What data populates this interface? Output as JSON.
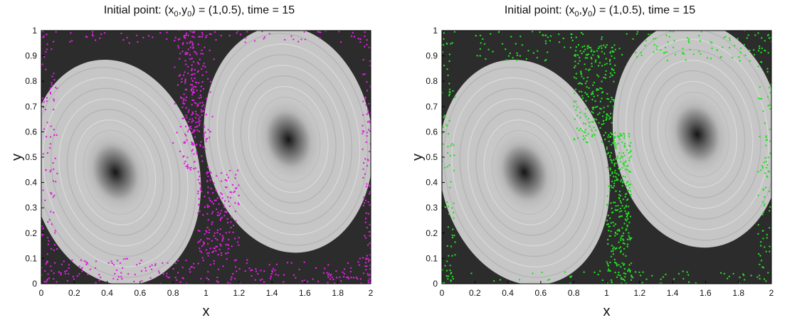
{
  "chart_data": [
    {
      "type": "scatter",
      "title_prefix": "Initial point: (x",
      "title_sub0": "0",
      "title_mid": ",y",
      "title_sub1": "0",
      "title_suffix": ") = (1,0.5),  time = 15",
      "xlabel": "x",
      "ylabel": "y",
      "xlim": [
        0,
        2
      ],
      "ylim": [
        0,
        1
      ],
      "xticks": [
        "0",
        "0.2",
        "0.4",
        "0.6",
        "0.8",
        "1",
        "1.2",
        "1.4",
        "1.6",
        "1.8",
        "2"
      ],
      "yticks": [
        "0",
        "0.1",
        "0.2",
        "0.3",
        "0.4",
        "0.5",
        "0.6",
        "0.7",
        "0.8",
        "0.9",
        "1"
      ],
      "background": "grayscale double-gyre flow field with two dark vortex cores",
      "vortex_centers": [
        [
          0.45,
          0.44
        ],
        [
          1.5,
          0.57
        ]
      ],
      "marker_color": "#e020e0",
      "particle_distribution": [
        {
          "region": "central separatrix band",
          "x_center": 0.92,
          "x_range": [
            0.85,
            1.0
          ],
          "y_range": [
            0.45,
            1.0
          ]
        },
        {
          "region": "lower separatrix band",
          "x_range": [
            0.95,
            1.2
          ],
          "y_range": [
            0.1,
            0.45
          ]
        },
        {
          "region": "bottom boundary",
          "x_range": [
            0.0,
            2.0
          ],
          "y_range": [
            0.0,
            0.1
          ]
        },
        {
          "region": "top boundary",
          "x_range": [
            0.0,
            2.0
          ],
          "y_range": [
            0.95,
            1.0
          ]
        },
        {
          "region": "left boundary",
          "x_range": [
            0.0,
            0.1
          ],
          "y_range": [
            0.0,
            1.0
          ]
        },
        {
          "region": "right boundary",
          "x_range": [
            1.95,
            2.0
          ],
          "y_range": [
            0.0,
            1.0
          ]
        }
      ]
    },
    {
      "type": "scatter",
      "title_prefix": "Initial point: (x",
      "title_sub0": "0",
      "title_mid": ",y",
      "title_sub1": "0",
      "title_suffix": ") = (1,0.5),  time = 15",
      "xlabel": "x",
      "ylabel": "y",
      "xlim": [
        0,
        2
      ],
      "ylim": [
        0,
        1
      ],
      "xticks": [
        "0",
        "0.2",
        "0.4",
        "0.6",
        "0.8",
        "1",
        "1.2",
        "1.4",
        "1.6",
        "1.8",
        "2"
      ],
      "yticks": [
        "0",
        "0.1",
        "0.2",
        "0.3",
        "0.4",
        "0.5",
        "0.6",
        "0.7",
        "0.8",
        "0.9",
        "1"
      ],
      "background": "grayscale double-gyre flow field with two dark vortex cores",
      "vortex_centers": [
        [
          0.5,
          0.44
        ],
        [
          1.55,
          0.59
        ]
      ],
      "marker_color": "#22e022",
      "particle_distribution": [
        {
          "region": "central separatrix band (lower)",
          "x_range": [
            1.0,
            1.15
          ],
          "y_range": [
            0.0,
            0.6
          ]
        },
        {
          "region": "central separatrix band (upper)",
          "x_range": [
            0.8,
            1.05
          ],
          "y_range": [
            0.55,
            0.95
          ]
        },
        {
          "region": "top boundary",
          "x_range": [
            0.2,
            2.0
          ],
          "y_range": [
            0.88,
            1.0
          ]
        },
        {
          "region": "left boundary",
          "x_range": [
            0.0,
            0.08
          ],
          "y_range": [
            0.0,
            1.0
          ]
        },
        {
          "region": "right boundary",
          "x_range": [
            1.92,
            2.0
          ],
          "y_range": [
            0.0,
            1.0
          ]
        },
        {
          "region": "bottom boundary",
          "x_range": [
            0.0,
            2.0
          ],
          "y_range": [
            0.0,
            0.05
          ]
        }
      ]
    }
  ]
}
